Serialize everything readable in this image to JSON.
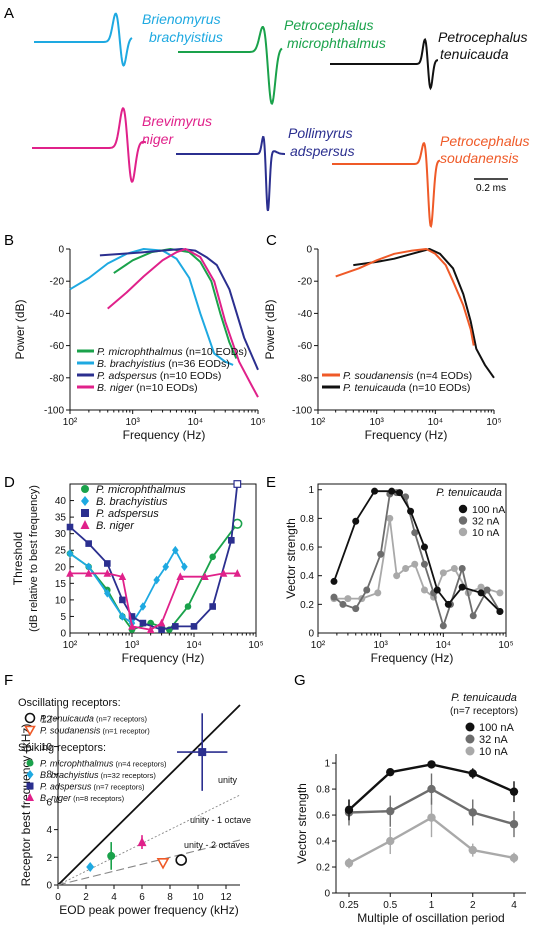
{
  "panel_letters": {
    "A": "A",
    "B": "B",
    "C": "C",
    "D": "D",
    "E": "E",
    "F": "F",
    "G": "G"
  },
  "colors": {
    "brachyistius": "#1ea9e1",
    "microphthalmus": "#1aa24b",
    "tenuicauda": "#111111",
    "niger": "#e0218a",
    "adspersus": "#2b2f8f",
    "soudanensis": "#ef5a28",
    "gray_dark": "#6d6d6d",
    "gray_light": "#a9a9a9"
  },
  "panel_a": {
    "waveforms": [
      {
        "genus": "Brienomyrus",
        "species": "brachyistius",
        "color": "#1ea9e1"
      },
      {
        "genus": "Petrocephalus",
        "species": "microphthalmus",
        "color": "#1aa24b"
      },
      {
        "genus": "Petrocephalus",
        "species": "tenuicauda",
        "color": "#111111"
      },
      {
        "genus": "Brevimyrus",
        "species": "niger",
        "color": "#e0218a"
      },
      {
        "genus": "Pollimyrus",
        "species": "adspersus",
        "color": "#2b2f8f"
      },
      {
        "genus": "Petrocephalus",
        "species": "soudanensis",
        "color": "#ef5a28"
      }
    ],
    "scalebar_label": "0.2 ms"
  },
  "chart_data": [
    {
      "panel": "B",
      "type": "line",
      "xlabel": "Frequency (Hz)",
      "ylabel": "Power (dB)",
      "xscale": "log",
      "xlim": [
        100,
        100000
      ],
      "ylim": [
        -100,
        0
      ],
      "xticks": [
        "10²",
        "10³",
        "10⁴",
        "10⁵"
      ],
      "yticks": [
        "0",
        "-20",
        "-40",
        "-60",
        "-80",
        "-100"
      ],
      "legend": [
        {
          "species": "P. microphthalmus",
          "n": "(n=10 EODs)",
          "color": "#1aa24b"
        },
        {
          "species": "B. brachyistius",
          "n": "(n=36 EODs)",
          "color": "#1ea9e1"
        },
        {
          "species": "P. adspersus",
          "n": "(n=10 EODs)",
          "color": "#2b2f8f"
        },
        {
          "species": "B. niger",
          "n": "(n=10 EODs)",
          "color": "#e0218a"
        }
      ],
      "series": [
        {
          "color": "#1ea9e1",
          "x": [
            100,
            200,
            400,
            800,
            1500,
            3000,
            5000,
            8000,
            12000,
            20000,
            30000,
            40000
          ],
          "y": [
            -25,
            -18,
            -9,
            -3,
            0,
            -1,
            -6,
            -18,
            -40,
            -65,
            -70,
            -72
          ]
        },
        {
          "color": "#1aa24b",
          "x": [
            500,
            1000,
            2000,
            4000,
            8000,
            12000,
            18000,
            25000,
            35000,
            45000
          ],
          "y": [
            -15,
            -7,
            -2,
            0,
            -2,
            -8,
            -20,
            -40,
            -58,
            -68
          ]
        },
        {
          "color": "#2b2f8f",
          "x": [
            300,
            700,
            1500,
            3000,
            6000,
            10000,
            15000,
            22000,
            35000,
            60000,
            100000
          ],
          "y": [
            -4,
            -3,
            -2,
            -1,
            0,
            -1,
            -5,
            -10,
            -25,
            -55,
            -75
          ]
        },
        {
          "color": "#e0218a",
          "x": [
            400,
            800,
            1500,
            3000,
            5000,
            7000,
            12000,
            20000,
            30000,
            50000,
            80000,
            100000
          ],
          "y": [
            -37,
            -27,
            -17,
            -7,
            -2,
            0,
            -5,
            -20,
            -45,
            -70,
            -85,
            -92
          ]
        }
      ]
    },
    {
      "panel": "C",
      "type": "line",
      "xlabel": "Frequency (Hz)",
      "ylabel": "Power (dB)",
      "xscale": "log",
      "xlim": [
        100,
        100000
      ],
      "ylim": [
        -100,
        0
      ],
      "xticks": [
        "10²",
        "10³",
        "10⁴",
        "10⁵"
      ],
      "yticks": [
        "0",
        "-20",
        "-40",
        "-60",
        "-80",
        "-100"
      ],
      "legend": [
        {
          "species": "P. soudanensis",
          "n": "(n=4 EODs)",
          "color": "#ef5a28"
        },
        {
          "species": "P. tenuicauda",
          "n": "(n=10 EODs)",
          "color": "#111111"
        }
      ],
      "series": [
        {
          "color": "#111111",
          "x": [
            400,
            1000,
            2000,
            4000,
            8000,
            12000,
            20000,
            30000,
            40000,
            50000,
            70000,
            100000
          ],
          "y": [
            -10,
            -8,
            -6,
            -3,
            0,
            -3,
            -12,
            -28,
            -45,
            -62,
            -72,
            -80
          ]
        },
        {
          "color": "#ef5a28",
          "x": [
            200,
            500,
            1000,
            2000,
            4000,
            7000,
            10000,
            15000,
            20000,
            30000,
            40000,
            45000
          ],
          "y": [
            -17,
            -12,
            -7,
            -3,
            -1,
            0,
            -3,
            -10,
            -20,
            -35,
            -50,
            -60
          ]
        }
      ]
    },
    {
      "panel": "D",
      "type": "line",
      "xlabel": "Frequency (Hz)",
      "ylabel": "Threshold",
      "ylabel2": "(dB relative to best frequency)",
      "xscale": "log",
      "xlim": [
        100,
        100000
      ],
      "ylim": [
        0,
        45
      ],
      "xticks": [
        "10²",
        "10³",
        "10⁴",
        "10⁵"
      ],
      "yticks": [
        "0",
        "5",
        "10",
        "15",
        "20",
        "25",
        "30",
        "35",
        "40"
      ],
      "legend": [
        {
          "species": "P. microphthalmus",
          "color": "#1aa24b",
          "marker": "circle"
        },
        {
          "species": "B. brachyistius",
          "color": "#1ea9e1",
          "marker": "diamond"
        },
        {
          "species": "P. adspersus",
          "color": "#2b2f8f",
          "marker": "square"
        },
        {
          "species": "B. niger",
          "color": "#e0218a",
          "marker": "triangle"
        }
      ],
      "series": [
        {
          "color": "#1aa24b",
          "marker": "circle",
          "x": [
            100,
            200,
            400,
            700,
            1000,
            2000,
            4000,
            8000,
            20000,
            50000
          ],
          "y": [
            24,
            20,
            13,
            5,
            1,
            3,
            1,
            8,
            23,
            33
          ],
          "open_last": true
        },
        {
          "color": "#1ea9e1",
          "marker": "diamond",
          "x": [
            100,
            200,
            400,
            700,
            1000,
            1500,
            2500,
            3500,
            5000,
            7000
          ],
          "y": [
            24,
            20,
            12,
            5,
            3,
            8,
            16,
            20,
            25,
            20
          ]
        },
        {
          "color": "#2b2f8f",
          "marker": "square",
          "x": [
            100,
            200,
            400,
            700,
            1000,
            1500,
            3000,
            5000,
            10000,
            20000,
            40000,
            50000
          ],
          "y": [
            32,
            27,
            21,
            10,
            5,
            3,
            1,
            2,
            2,
            8,
            28,
            45
          ],
          "open_last": true
        },
        {
          "color": "#e0218a",
          "marker": "triangle",
          "x": [
            100,
            200,
            400,
            700,
            1000,
            2000,
            3000,
            6000,
            15000,
            30000,
            50000
          ],
          "y": [
            18,
            18,
            18,
            17,
            2,
            1,
            3,
            17,
            17,
            18,
            18
          ]
        }
      ]
    },
    {
      "panel": "E",
      "type": "line",
      "xlabel": "Frequency (Hz)",
      "ylabel": "Vector strength",
      "xscale": "log",
      "xlim": [
        100,
        100000
      ],
      "ylim": [
        0,
        1
      ],
      "xticks": [
        "10²",
        "10³",
        "10⁴",
        "10⁵"
      ],
      "yticks": [
        "0",
        "0.2",
        "0.4",
        "0.6",
        "0.8",
        "1"
      ],
      "legend_title": "P. tenuicauda",
      "legend": [
        {
          "label": "100 nA",
          "color": "#111111"
        },
        {
          "label": "32 nA",
          "color": "#6d6d6d"
        },
        {
          "label": "10 nA",
          "color": "#a9a9a9"
        }
      ],
      "series": [
        {
          "color": "#111111",
          "x": [
            180,
            400,
            800,
            1500,
            2000,
            3000,
            5000,
            8000,
            12000,
            20000,
            40000,
            80000
          ],
          "y": [
            0.36,
            0.78,
            0.99,
            0.99,
            0.98,
            0.85,
            0.6,
            0.3,
            0.2,
            0.32,
            0.28,
            0.15
          ]
        },
        {
          "color": "#6d6d6d",
          "x": [
            180,
            250,
            400,
            600,
            1000,
            1400,
            1800,
            2500,
            3500,
            5000,
            7000,
            10000,
            13000,
            20000,
            30000,
            50000,
            80000
          ],
          "y": [
            0.25,
            0.2,
            0.17,
            0.3,
            0.55,
            0.97,
            0.98,
            0.95,
            0.7,
            0.48,
            0.28,
            0.05,
            0.2,
            0.45,
            0.12,
            0.3,
            0.15
          ]
        },
        {
          "color": "#a9a9a9",
          "x": [
            180,
            300,
            500,
            900,
            1400,
            1800,
            2500,
            3500,
            5000,
            7000,
            10000,
            15000,
            25000,
            40000,
            80000
          ],
          "y": [
            0.24,
            0.24,
            0.24,
            0.28,
            0.8,
            0.4,
            0.45,
            0.48,
            0.3,
            0.25,
            0.42,
            0.45,
            0.28,
            0.32,
            0.28
          ]
        }
      ]
    },
    {
      "panel": "F",
      "type": "scatter",
      "xlabel": "EOD peak power frequency (kHz)",
      "ylabel": "Receptor best frequency (kHz)",
      "xlim": [
        0,
        13
      ],
      "ylim": [
        0,
        13
      ],
      "xticks": [
        "0",
        "2",
        "4",
        "6",
        "8",
        "10",
        "12"
      ],
      "yticks": [
        "0",
        "2",
        "4",
        "6",
        "8",
        "10",
        "12"
      ],
      "lines": [
        {
          "label": "unity",
          "style": "solid",
          "slope": 1
        },
        {
          "label": "unity - 1 octave",
          "style": "dashed",
          "slope": 0.5
        },
        {
          "label": "unity - 2 octaves",
          "style": "dashed",
          "slope": 0.25
        }
      ],
      "legend_osc_title": "Oscillating receptors:",
      "legend_spk_title": "Spiking receptors:",
      "legend_osc": [
        {
          "species": "P. tenuicauda",
          "n": "(n=7 receptors)",
          "color": "#111111",
          "marker": "open-circle"
        },
        {
          "species": "P. soudanensis",
          "n": "(n=1 receptor)",
          "color": "#ef5a28",
          "marker": "open-triangle-down"
        }
      ],
      "legend_spk": [
        {
          "species": "P. microphthalmus",
          "n": "(n=4 receptors)",
          "color": "#1aa24b",
          "marker": "circle"
        },
        {
          "species": "B. brachyistius",
          "n": "(n=32 receptors)",
          "color": "#1ea9e1",
          "marker": "diamond"
        },
        {
          "species": "P. adspersus",
          "n": "(n=7 receptors)",
          "color": "#2b2f8f",
          "marker": "square"
        },
        {
          "species": "B. niger",
          "n": "(n=8 receptors)",
          "color": "#e0218a",
          "marker": "triangle"
        }
      ],
      "points": [
        {
          "color": "#1ea9e1",
          "marker": "diamond",
          "x": 2.3,
          "y": 1.3
        },
        {
          "color": "#1aa24b",
          "marker": "circle",
          "x": 3.8,
          "y": 2.1,
          "yerr": 1.0
        },
        {
          "color": "#e0218a",
          "marker": "triangle",
          "x": 6.0,
          "y": 3.1,
          "yerr": 0.5
        },
        {
          "color": "#ef5a28",
          "marker": "open-triangle-down",
          "x": 7.5,
          "y": 1.6
        },
        {
          "color": "#111111",
          "marker": "open-circle",
          "x": 8.8,
          "y": 1.8
        },
        {
          "color": "#2b2f8f",
          "marker": "square",
          "x": 10.3,
          "y": 9.6,
          "xerr": 1.8,
          "yerr": 2.8
        }
      ]
    },
    {
      "panel": "G",
      "type": "line",
      "xlabel": "Multiple of oscillation period",
      "ylabel": "Vector strength",
      "categories": [
        "0.25",
        "0.5",
        "1",
        "2",
        "4"
      ],
      "ylim": [
        0,
        1
      ],
      "yticks": [
        "0",
        "0.2",
        "0.4",
        "0.6",
        "0.8",
        "1"
      ],
      "legend_title": "P. tenuicauda",
      "legend_subtitle": "(n=7 receptors)",
      "legend": [
        {
          "label": "100 nA",
          "color": "#111111"
        },
        {
          "label": "32 nA",
          "color": "#6d6d6d"
        },
        {
          "label": "10 nA",
          "color": "#a9a9a9"
        }
      ],
      "series": [
        {
          "color": "#111111",
          "values": [
            0.64,
            0.93,
            0.99,
            0.92,
            0.78
          ],
          "err": [
            0.08,
            0.02,
            0.01,
            0.04,
            0.08
          ]
        },
        {
          "color": "#6d6d6d",
          "values": [
            0.62,
            0.63,
            0.8,
            0.62,
            0.53
          ],
          "err": [
            0.1,
            0.12,
            0.12,
            0.1,
            0.1
          ]
        },
        {
          "color": "#a9a9a9",
          "values": [
            0.23,
            0.4,
            0.58,
            0.33,
            0.27
          ],
          "err": [
            0.04,
            0.1,
            0.15,
            0.05,
            0.04
          ]
        }
      ]
    }
  ]
}
